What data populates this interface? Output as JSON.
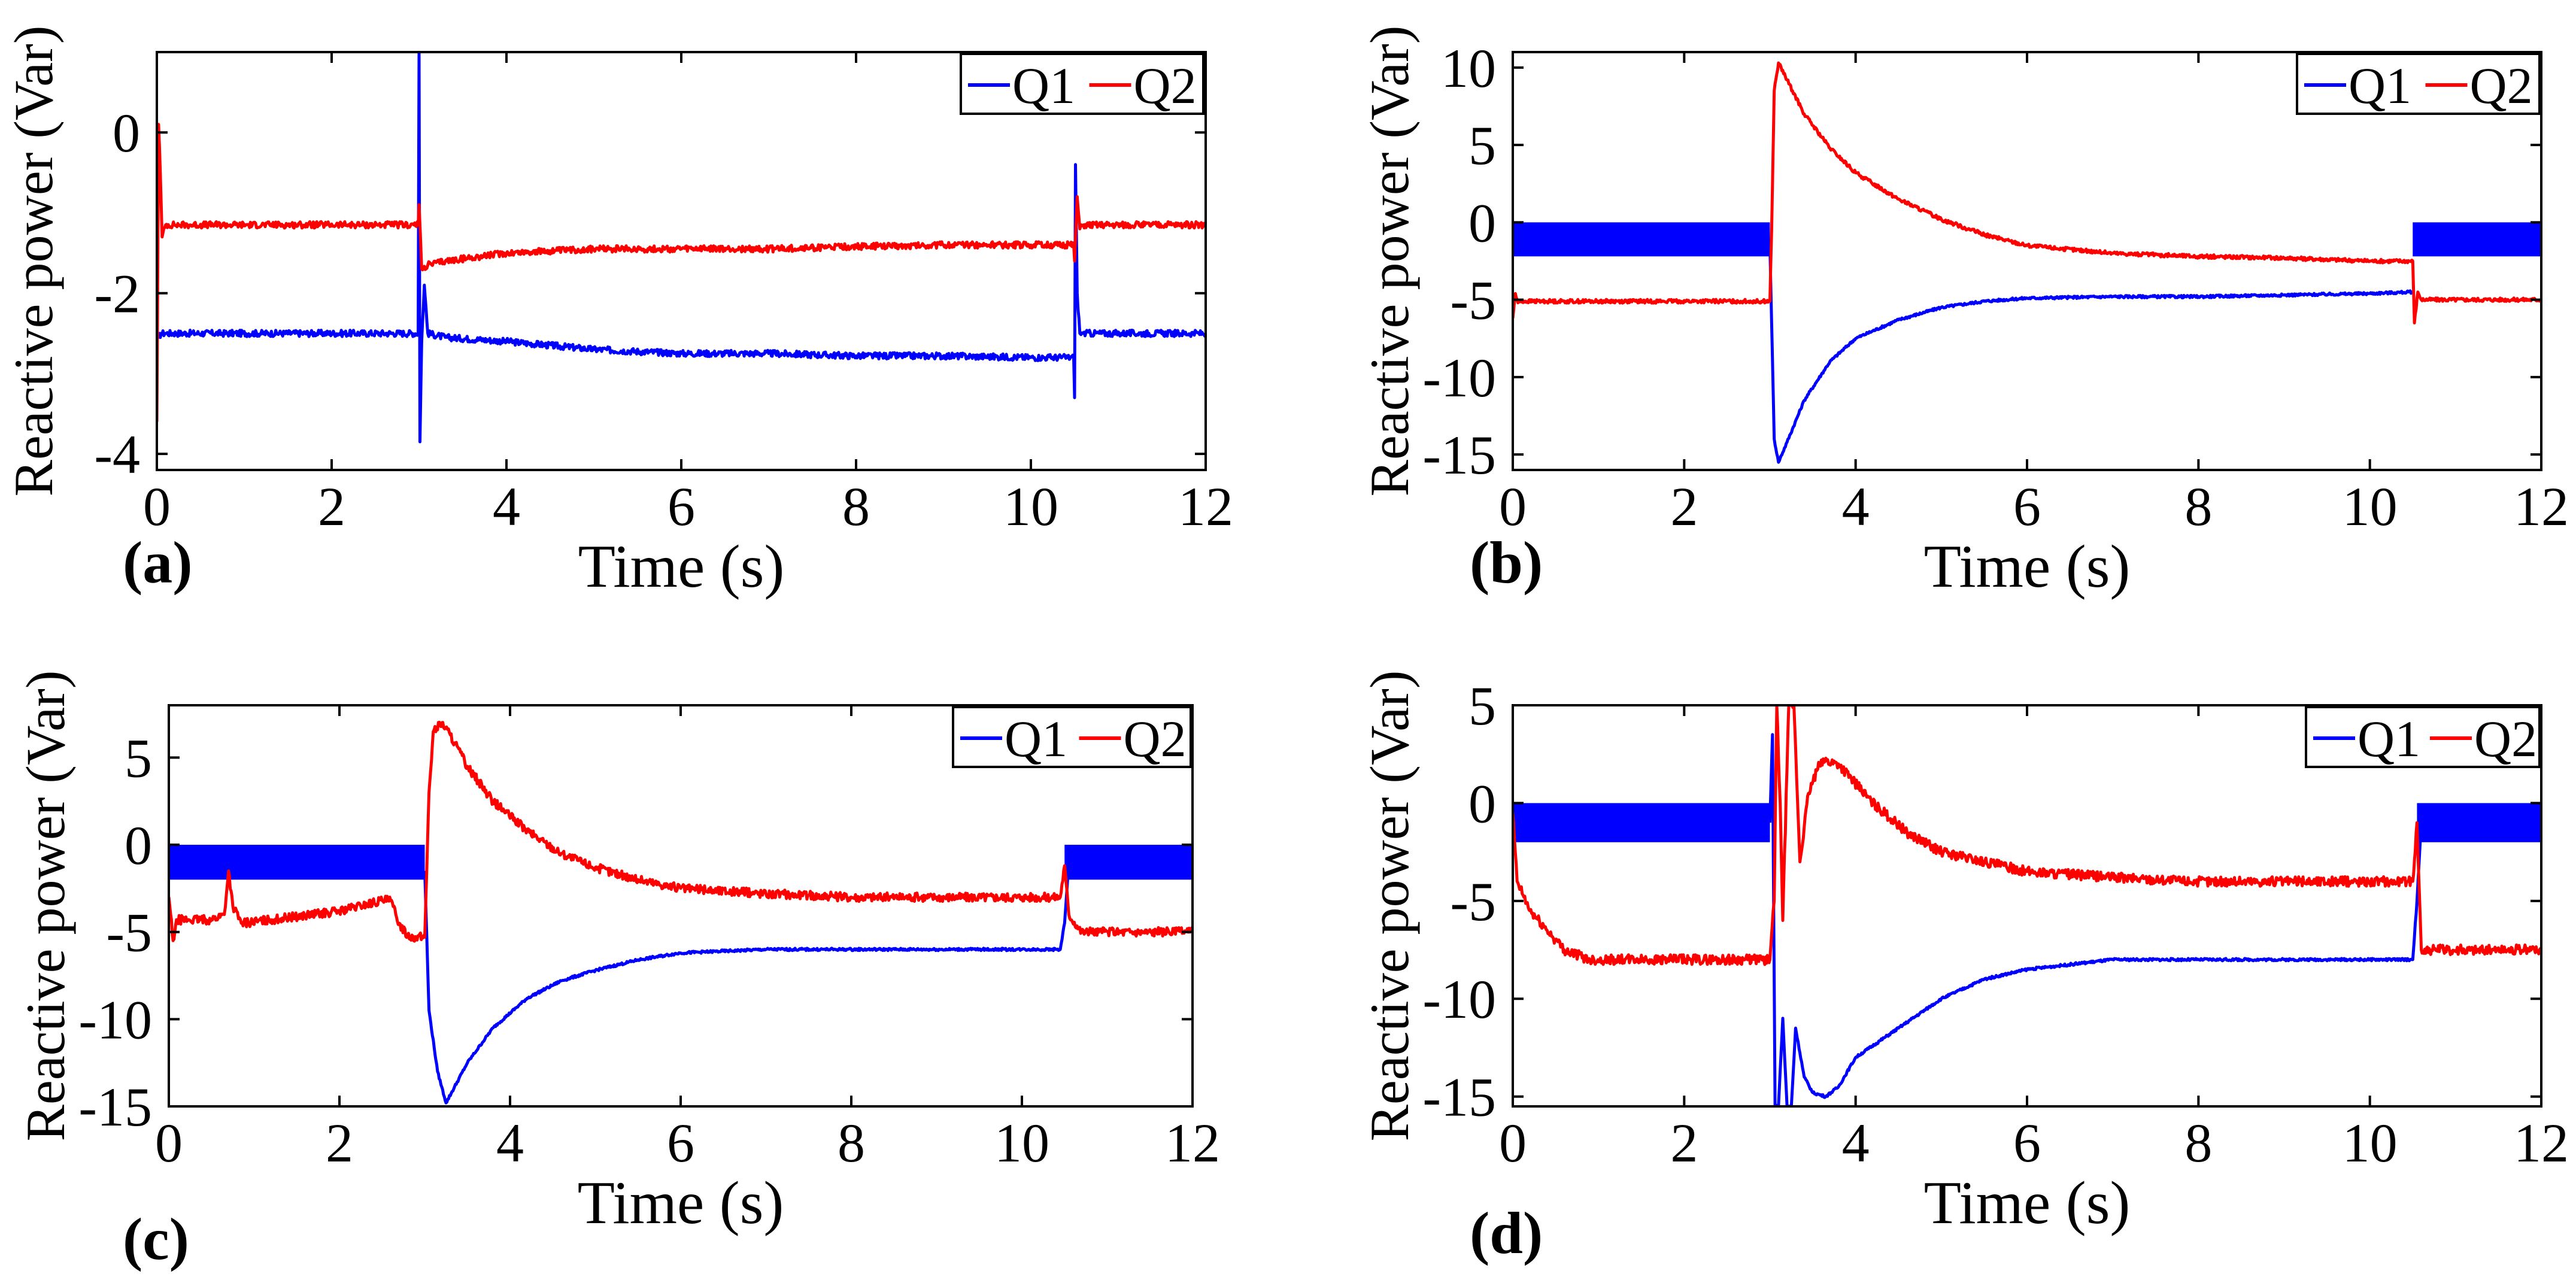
{
  "chart_data": [
    {
      "id": "a",
      "type": "line",
      "panel_label": "(a)",
      "xlabel": "Time (s)",
      "ylabel": "Reactive power (Var)",
      "xlim": [
        0,
        12
      ],
      "ylim": [
        -4.2,
        1.0
      ],
      "xticks": [
        0,
        2,
        4,
        6,
        8,
        10,
        12
      ],
      "xtick_labels": [
        "0",
        "2",
        "4",
        "6",
        "8",
        "10",
        "12"
      ],
      "yticks": [
        -4,
        -2,
        0
      ],
      "ytick_labels": [
        "-4",
        "-2",
        "0"
      ],
      "legend": {
        "position": "top-right",
        "entries": [
          "Q1",
          "Q2"
        ]
      },
      "series": [
        {
          "name": "Q1",
          "color": "#0000ff",
          "noise": 0.04,
          "x": [
            0,
            0.02,
            0.05,
            0.1,
            2.99,
            3.0,
            3.01,
            3.03,
            3.06,
            3.1,
            3.3,
            4,
            5,
            6,
            7,
            8,
            9,
            10,
            10.49,
            10.5,
            10.51,
            10.53,
            10.56,
            10.6,
            12
          ],
          "y": [
            -2.5,
            -2.55,
            -2.5,
            -2.5,
            -2.5,
            1.0,
            -3.85,
            -2.6,
            -1.9,
            -2.5,
            -2.55,
            -2.6,
            -2.7,
            -2.75,
            -2.75,
            -2.78,
            -2.78,
            -2.8,
            -2.8,
            -3.3,
            -0.4,
            -2.0,
            -2.5,
            -2.5,
            -2.5
          ]
        },
        {
          "name": "Q2",
          "color": "#ff0000",
          "noise": 0.04,
          "x": [
            0,
            0.02,
            0.04,
            0.06,
            0.1,
            0.2,
            2.99,
            3.0,
            3.03,
            3.1,
            3.3,
            4,
            5,
            6,
            7,
            8,
            9,
            10,
            10.49,
            10.5,
            10.53,
            10.56,
            10.6,
            12
          ],
          "y": [
            -3.6,
            0.1,
            -0.5,
            -1.3,
            -1.15,
            -1.15,
            -1.15,
            -0.9,
            -1.7,
            -1.65,
            -1.6,
            -1.5,
            -1.45,
            -1.45,
            -1.45,
            -1.42,
            -1.4,
            -1.4,
            -1.4,
            -1.6,
            -0.8,
            -1.2,
            -1.15,
            -1.15
          ]
        }
      ]
    },
    {
      "id": "b",
      "type": "line",
      "panel_label": "(b)",
      "xlabel": "Time (s)",
      "ylabel": "Reactive power (Var)",
      "xlim": [
        0,
        12
      ],
      "ylim": [
        -16,
        11
      ],
      "xticks": [
        0,
        2,
        4,
        6,
        8,
        10,
        12
      ],
      "xtick_labels": [
        "0",
        "2",
        "4",
        "6",
        "8",
        "10",
        "12"
      ],
      "yticks": [
        -15,
        -10,
        -5,
        0,
        5,
        10
      ],
      "ytick_labels": [
        "-15",
        "-10",
        "-5",
        "0",
        "5",
        "10"
      ],
      "legend": {
        "position": "top-right",
        "entries": [
          "Q1",
          "Q2"
        ]
      },
      "series": [
        {
          "name": "Q1",
          "color": "#0000ff",
          "band": [
            [
              0,
              3.0,
              -2.2,
              0.0
            ],
            [
              10.5,
              12,
              -2.2,
              0.0
            ]
          ],
          "x": [
            3.0,
            3.05,
            3.1,
            3.2,
            3.4,
            3.7,
            4.0,
            4.5,
            5,
            5.5,
            6,
            7,
            8,
            9,
            10,
            10.5
          ],
          "y": [
            -1.5,
            -14,
            -15.5,
            -14.2,
            -11.5,
            -9,
            -7.5,
            -6.3,
            -5.5,
            -5.1,
            -4.9,
            -4.8,
            -4.8,
            -4.7,
            -4.6,
            -4.5
          ]
        },
        {
          "name": "Q2",
          "color": "#ff0000",
          "noise": 0.12,
          "x": [
            0,
            0.03,
            0.06,
            0.1,
            3.0,
            3.02,
            3.05,
            3.1,
            3.2,
            3.4,
            3.7,
            4.0,
            4.5,
            5,
            5.5,
            6,
            7,
            8,
            9,
            10,
            10.5,
            10.52,
            10.56,
            10.6,
            12
          ],
          "y": [
            -6.2,
            -4.6,
            -5.2,
            -5.1,
            -5.1,
            -0.5,
            8.5,
            10.3,
            9.2,
            7,
            4.8,
            3.2,
            1.5,
            0.2,
            -0.8,
            -1.5,
            -2.0,
            -2.2,
            -2.3,
            -2.5,
            -2.5,
            -6.5,
            -4.5,
            -5.0,
            -5.0
          ]
        }
      ]
    },
    {
      "id": "c",
      "type": "line",
      "panel_label": "(c)",
      "xlabel": "Time (s)",
      "ylabel": "Reactive power (Var)",
      "xlim": [
        0,
        12
      ],
      "ylim": [
        -15,
        8
      ],
      "xticks": [
        0,
        2,
        4,
        6,
        8,
        10,
        12
      ],
      "xtick_labels": [
        "0",
        "2",
        "4",
        "6",
        "8",
        "10",
        "12"
      ],
      "yticks": [
        -15,
        -10,
        -5,
        0,
        5
      ],
      "ytick_labels": [
        "-15",
        "-10",
        "-5",
        "0",
        "5"
      ],
      "legend": {
        "position": "top-right",
        "entries": [
          "Q1",
          "Q2"
        ]
      },
      "series": [
        {
          "name": "Q1",
          "color": "#0000ff",
          "band": [
            [
              0,
              3.0,
              -2.0,
              0.0
            ],
            [
              10.5,
              12,
              -2.0,
              0.0
            ]
          ],
          "x": [
            3.0,
            3.05,
            3.15,
            3.25,
            3.5,
            3.8,
            4.2,
            4.6,
            5,
            5.5,
            6,
            7,
            8,
            9,
            10,
            10.45,
            10.5,
            10.55
          ],
          "y": [
            -1.5,
            -9.5,
            -13,
            -14.8,
            -12.5,
            -10.5,
            -8.8,
            -7.8,
            -7.2,
            -6.6,
            -6.2,
            -6.0,
            -6.0,
            -6.0,
            -6.0,
            -6.0,
            -4.5,
            -1.0
          ]
        },
        {
          "name": "Q2",
          "color": "#ff0000",
          "noise": 0.25,
          "x": [
            0,
            0.05,
            0.1,
            0.5,
            0.65,
            0.7,
            0.75,
            0.85,
            1.2,
            2.0,
            2.5,
            2.6,
            2.7,
            2.8,
            2.9,
            3.0,
            3.05,
            3.1,
            3.2,
            3.3,
            3.5,
            3.8,
            4.2,
            4.6,
            5,
            5.5,
            6,
            7,
            8,
            9,
            10,
            10.45,
            10.5,
            10.55,
            10.7,
            12
          ],
          "y": [
            -3.0,
            -5.5,
            -4.3,
            -4.3,
            -4.0,
            -1.5,
            -3.5,
            -4.5,
            -4.3,
            -3.8,
            -3.2,
            -3.2,
            -4.5,
            -5.2,
            -5.3,
            -5.3,
            3.0,
            6.5,
            7.0,
            6.3,
            4.5,
            2.5,
            0.8,
            -0.5,
            -1.3,
            -2.0,
            -2.5,
            -2.8,
            -3.0,
            -3.0,
            -3.0,
            -3.0,
            -1.2,
            -4.0,
            -5.0,
            -5.0
          ]
        }
      ]
    },
    {
      "id": "d",
      "type": "line",
      "panel_label": "(d)",
      "xlabel": "Time (s)",
      "ylabel": "Reactive power (Var)",
      "xlim": [
        0,
        12
      ],
      "ylim": [
        -15.5,
        5
      ],
      "xticks": [
        0,
        2,
        4,
        6,
        8,
        10,
        12
      ],
      "xtick_labels": [
        "0",
        "2",
        "4",
        "6",
        "8",
        "10",
        "12"
      ],
      "yticks": [
        -15,
        -10,
        -5,
        0,
        5
      ],
      "ytick_labels": [
        "-15",
        "-10",
        "-5",
        "0",
        "5"
      ],
      "legend": {
        "position": "top-right",
        "entries": [
          "Q1",
          "Q2"
        ]
      },
      "series": [
        {
          "name": "Q1",
          "color": "#0000ff",
          "band": [
            [
              0,
              3.0,
              -2.0,
              0.0
            ],
            [
              10.55,
              12,
              -2.0,
              0.0
            ]
          ],
          "x": [
            3.0,
            3.03,
            3.06,
            3.1,
            3.15,
            3.2,
            3.25,
            3.3,
            3.4,
            3.5,
            3.65,
            3.8,
            4.0,
            4.5,
            5,
            5.5,
            6,
            7,
            8,
            9,
            10,
            10.5,
            10.55,
            10.6
          ],
          "y": [
            -1.0,
            3.5,
            -15.5,
            -15.5,
            -11,
            -15.5,
            -15.5,
            -11.5,
            -14.0,
            -14.8,
            -15.0,
            -14.5,
            -13.0,
            -11.5,
            -10.0,
            -9.0,
            -8.5,
            -8.0,
            -8.0,
            -8.0,
            -8.0,
            -8.0,
            -5.0,
            -1.0
          ]
        },
        {
          "name": "Q2",
          "color": "#ff0000",
          "noise": 0.25,
          "x": [
            0,
            0.05,
            0.2,
            0.4,
            0.6,
            0.9,
            1.2,
            2.0,
            3.0,
            3.05,
            3.08,
            3.12,
            3.15,
            3.22,
            3.28,
            3.35,
            3.45,
            3.6,
            3.8,
            4.2,
            4.6,
            5,
            5.5,
            6,
            7,
            8,
            9,
            10,
            10.5,
            10.55,
            10.6,
            12
          ],
          "y": [
            -0.5,
            -4.0,
            -5.5,
            -6.5,
            -7.5,
            -8.0,
            -8.0,
            -8.0,
            -8.0,
            -5.0,
            5.0,
            0.0,
            -6.0,
            5.0,
            5.0,
            -3.0,
            0.5,
            2.2,
            2.0,
            0.0,
            -1.5,
            -2.5,
            -3.0,
            -3.5,
            -3.8,
            -4.0,
            -4.0,
            -4.0,
            -4.0,
            -1.0,
            -7.5,
            -7.5
          ]
        }
      ]
    }
  ]
}
